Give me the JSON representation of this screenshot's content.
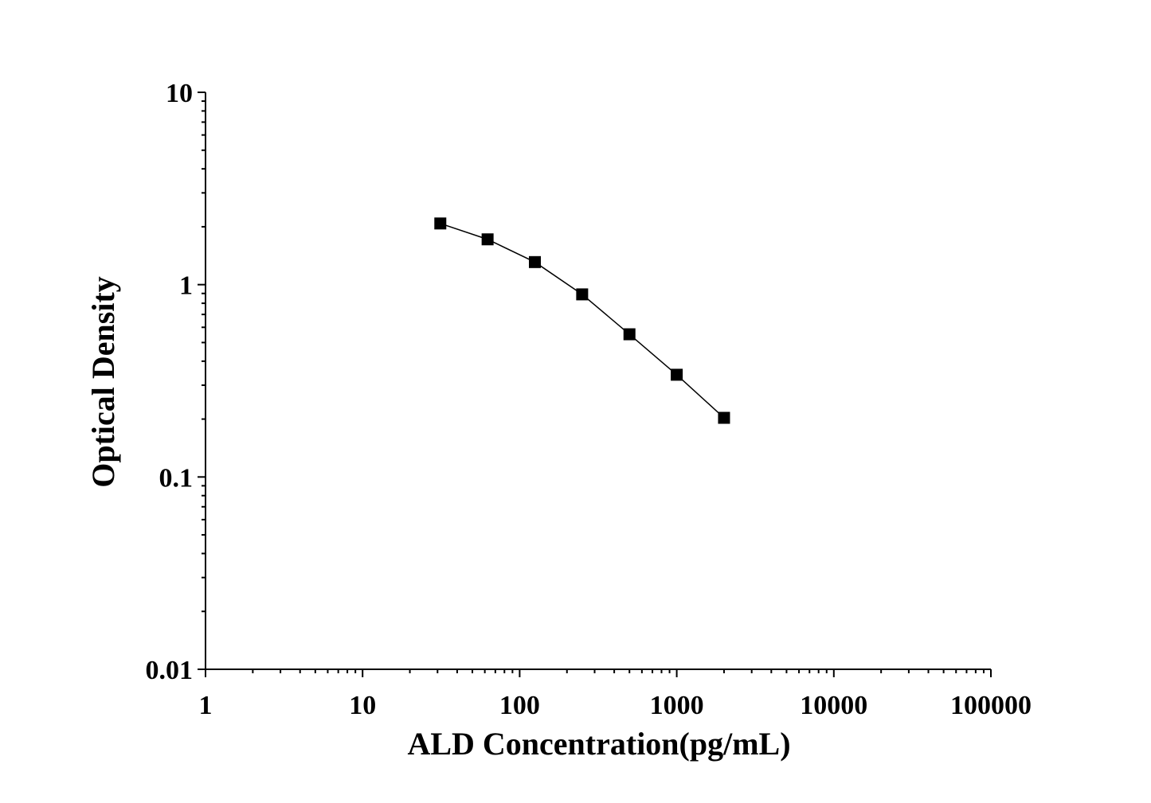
{
  "chart_data": {
    "type": "line",
    "title": "",
    "xlabel": "ALD Concentration(pg/mL)",
    "ylabel": "Optical Density",
    "x_scale": "log",
    "y_scale": "log",
    "xlim": [
      1,
      100000
    ],
    "ylim": [
      0.01,
      10
    ],
    "x_ticks": [
      "1",
      "10",
      "100",
      "1000",
      "10000",
      "100000"
    ],
    "y_ticks": [
      "0.01",
      "0.1",
      "1",
      "10"
    ],
    "grid": false,
    "marker": "square",
    "series": [
      {
        "x": [
          31.25,
          62.5,
          125,
          250,
          500,
          1000,
          2000
        ],
        "y": [
          2.08,
          1.72,
          1.31,
          0.89,
          0.552,
          0.34,
          0.203
        ]
      }
    ],
    "colors": {
      "line": "#000000",
      "marker": "#000000",
      "axis": "#000000"
    }
  }
}
